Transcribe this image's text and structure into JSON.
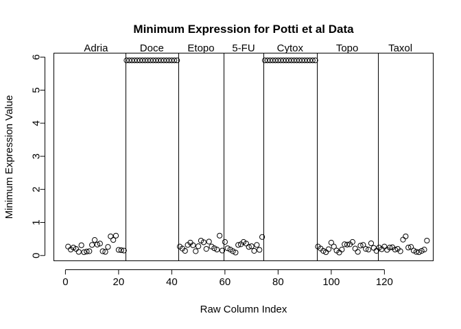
{
  "chart_data": {
    "type": "scatter",
    "title": "Minimum Expression for Potti et al Data",
    "xlabel": "Raw Column Index",
    "ylabel": "Minimum Expression Value",
    "xlim": [
      -4.36,
      138.36
    ],
    "ylim": [
      -0.16,
      6.12
    ],
    "xticks": [
      0,
      20,
      40,
      60,
      80,
      100,
      120
    ],
    "yticks": [
      0,
      1,
      2,
      3,
      4,
      5,
      6
    ],
    "grid": false,
    "point_marker": "open-circle",
    "groups": [
      {
        "label": "Adria",
        "start": 1,
        "end": 22
      },
      {
        "label": "Doce",
        "start": 23,
        "end": 42
      },
      {
        "label": "Etopo",
        "start": 43,
        "end": 59
      },
      {
        "label": "5-FU",
        "start": 60,
        "end": 74
      },
      {
        "label": "Cytox",
        "start": 75,
        "end": 94
      },
      {
        "label": "Topo",
        "start": 95,
        "end": 117
      },
      {
        "label": "Taxol",
        "start": 118,
        "end": 134
      }
    ],
    "dividers": [
      22.5,
      42.5,
      59.5,
      74.5,
      94.5,
      117.5
    ],
    "y": [
      0.27,
      0.18,
      0.24,
      0.2,
      0.11,
      0.31,
      0.1,
      0.12,
      0.13,
      0.32,
      0.47,
      0.33,
      0.36,
      0.13,
      0.11,
      0.26,
      0.58,
      0.47,
      0.6,
      0.17,
      0.16,
      0.15,
      5.9,
      5.9,
      5.9,
      5.9,
      5.9,
      5.9,
      5.9,
      5.9,
      5.9,
      5.9,
      5.9,
      5.9,
      5.9,
      5.9,
      5.9,
      5.9,
      5.9,
      5.9,
      5.9,
      5.9,
      0.27,
      0.21,
      0.14,
      0.32,
      0.39,
      0.31,
      0.13,
      0.28,
      0.45,
      0.4,
      0.2,
      0.42,
      0.27,
      0.22,
      0.18,
      0.6,
      0.15,
      0.41,
      0.22,
      0.18,
      0.13,
      0.09,
      0.32,
      0.34,
      0.41,
      0.36,
      0.26,
      0.28,
      0.14,
      0.32,
      0.17,
      0.56,
      5.9,
      5.9,
      5.9,
      5.9,
      5.9,
      5.9,
      5.9,
      5.9,
      5.9,
      5.9,
      5.9,
      5.9,
      5.9,
      5.9,
      5.9,
      5.9,
      5.9,
      5.9,
      5.9,
      5.9,
      0.27,
      0.21,
      0.14,
      0.1,
      0.19,
      0.39,
      0.27,
      0.15,
      0.09,
      0.18,
      0.34,
      0.33,
      0.34,
      0.41,
      0.21,
      0.11,
      0.3,
      0.32,
      0.2,
      0.18,
      0.37,
      0.23,
      0.14,
      0.24,
      0.19,
      0.27,
      0.17,
      0.24,
      0.25,
      0.18,
      0.2,
      0.13,
      0.48,
      0.58,
      0.24,
      0.26,
      0.15,
      0.11,
      0.1,
      0.14,
      0.18,
      0.45
    ]
  }
}
